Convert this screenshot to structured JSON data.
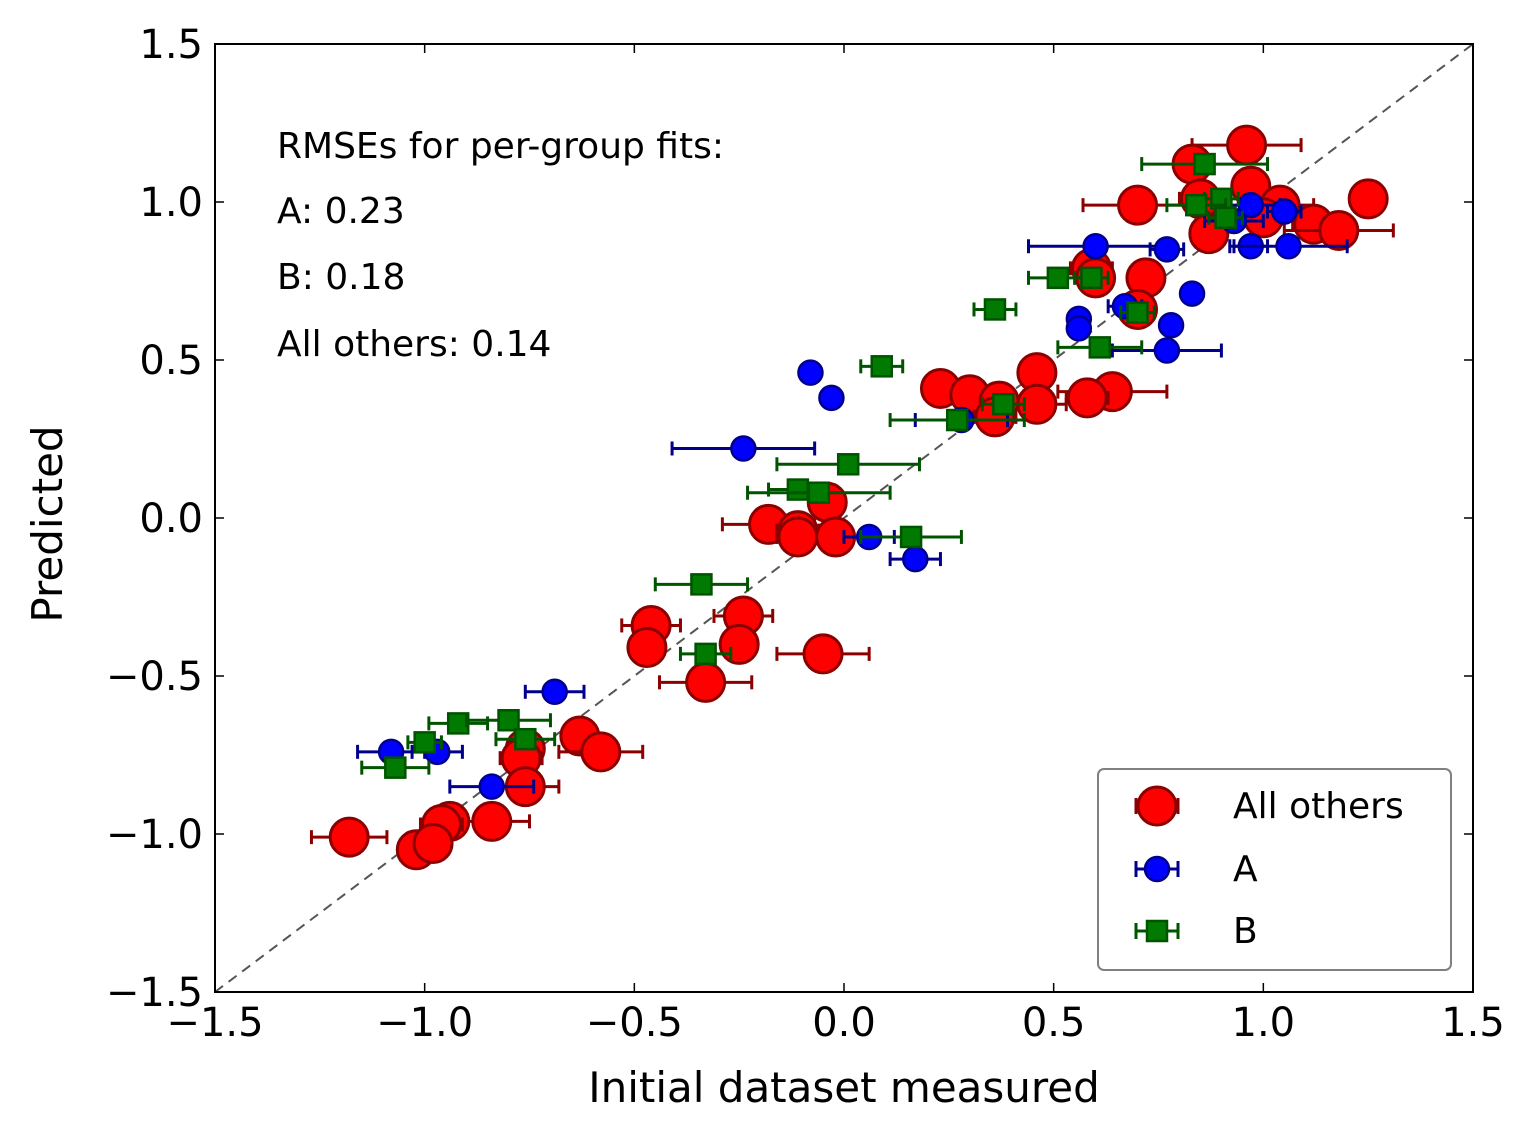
{
  "chart_data": {
    "type": "scatter",
    "xlabel": "Initial dataset measured",
    "ylabel": "Predicted",
    "xlim": [
      -1.5,
      1.5
    ],
    "ylim": [
      -1.5,
      1.5
    ],
    "ticks": [
      "−1.5",
      "−1.0",
      "−0.5",
      "0.0",
      "0.5",
      "1.0",
      "1.5"
    ],
    "tick_values": [
      -1.5,
      -1.0,
      -0.5,
      0.0,
      0.5,
      1.0,
      1.5
    ],
    "identity_line": true,
    "grid": false,
    "legend_position": "lower-right",
    "annotations": [
      "RMSEs for per-group fits:",
      "A: 0.23",
      "B: 0.18",
      "All others: 0.14"
    ],
    "series": [
      {
        "name": "All others",
        "marker": "circle-large",
        "color": "#ff0000",
        "edge_color": "#8b0000",
        "points": [
          {
            "x": 0.96,
            "y": 1.18,
            "xerr": 0.13
          },
          {
            "x": 0.83,
            "y": 1.12,
            "xerr": 0.04
          },
          {
            "x": 1.25,
            "y": 1.01,
            "xerr": 0.0
          },
          {
            "x": 0.7,
            "y": 0.99,
            "xerr": 0.13
          },
          {
            "x": 0.85,
            "y": 1.01,
            "xerr": 0.05
          },
          {
            "x": 0.97,
            "y": 1.05,
            "xerr": 0.04
          },
          {
            "x": 1.04,
            "y": 0.99,
            "xerr": 0.08
          },
          {
            "x": 1.0,
            "y": 0.95,
            "xerr": 0.04
          },
          {
            "x": 1.12,
            "y": 0.93,
            "xerr": 0.05
          },
          {
            "x": 1.18,
            "y": 0.91,
            "xerr": 0.13
          },
          {
            "x": 0.87,
            "y": 0.9,
            "xerr": 0.04
          },
          {
            "x": 0.59,
            "y": 0.79,
            "xerr": 0.05
          },
          {
            "x": 0.6,
            "y": 0.76,
            "xerr": 0.04
          },
          {
            "x": 0.72,
            "y": 0.76,
            "xerr": 0.04
          },
          {
            "x": 0.7,
            "y": 0.66,
            "xerr": 0.04
          },
          {
            "x": 0.46,
            "y": 0.46,
            "xerr": 0.04
          },
          {
            "x": 0.64,
            "y": 0.4,
            "xerr": 0.13
          },
          {
            "x": 0.58,
            "y": 0.38,
            "xerr": 0.05
          },
          {
            "x": 0.23,
            "y": 0.41,
            "xerr": 0.04
          },
          {
            "x": 0.3,
            "y": 0.39,
            "xerr": 0.04
          },
          {
            "x": 0.37,
            "y": 0.37,
            "xerr": 0.04
          },
          {
            "x": 0.46,
            "y": 0.36,
            "xerr": 0.07
          },
          {
            "x": 0.36,
            "y": 0.32,
            "xerr": 0.05
          },
          {
            "x": -0.04,
            "y": 0.05,
            "xerr": 0.04
          },
          {
            "x": -0.18,
            "y": -0.02,
            "xerr": 0.11
          },
          {
            "x": -0.11,
            "y": -0.04,
            "xerr": 0.05
          },
          {
            "x": -0.11,
            "y": -0.06,
            "xerr": 0.05
          },
          {
            "x": -0.02,
            "y": -0.06,
            "xerr": 0.04
          },
          {
            "x": -0.24,
            "y": -0.31,
            "xerr": 0.07
          },
          {
            "x": -0.46,
            "y": -0.34,
            "xerr": 0.07
          },
          {
            "x": -0.47,
            "y": -0.41,
            "xerr": 0.04
          },
          {
            "x": -0.25,
            "y": -0.4,
            "xerr": 0.04
          },
          {
            "x": -0.05,
            "y": -0.43,
            "xerr": 0.11
          },
          {
            "x": -0.33,
            "y": -0.52,
            "xerr": 0.11
          },
          {
            "x": -0.63,
            "y": -0.69,
            "xerr": 0.04
          },
          {
            "x": -0.76,
            "y": -0.73,
            "xerr": 0.04
          },
          {
            "x": -0.77,
            "y": -0.76,
            "xerr": 0.05
          },
          {
            "x": -0.58,
            "y": -0.74,
            "xerr": 0.1
          },
          {
            "x": -0.76,
            "y": -0.85,
            "xerr": 0.08
          },
          {
            "x": -0.84,
            "y": -0.96,
            "xerr": 0.09
          },
          {
            "x": -0.94,
            "y": -0.96,
            "xerr": 0.04
          },
          {
            "x": -0.96,
            "y": -0.97,
            "xerr": 0.05
          },
          {
            "x": -1.18,
            "y": -1.01,
            "xerr": 0.09
          },
          {
            "x": -1.02,
            "y": -1.05,
            "xerr": 0.04
          },
          {
            "x": -0.98,
            "y": -1.03,
            "xerr": 0.04
          }
        ]
      },
      {
        "name": "A",
        "marker": "circle",
        "color": "#0000ff",
        "edge_color": "#00008b",
        "points": [
          {
            "x": 0.97,
            "y": 0.99,
            "xerr": 0.07
          },
          {
            "x": 1.05,
            "y": 0.97,
            "xerr": 0.04
          },
          {
            "x": 0.93,
            "y": 0.94,
            "xerr": 0.07
          },
          {
            "x": 0.6,
            "y": 0.86,
            "xerr": 0.16
          },
          {
            "x": 0.77,
            "y": 0.85,
            "xerr": 0.04
          },
          {
            "x": 0.97,
            "y": 0.86,
            "xerr": 0.04
          },
          {
            "x": 1.06,
            "y": 0.86,
            "xerr": 0.14
          },
          {
            "x": 0.83,
            "y": 0.71,
            "xerr": 0.0
          },
          {
            "x": 0.67,
            "y": 0.67,
            "xerr": 0.04
          },
          {
            "x": 0.56,
            "y": 0.63,
            "xerr": 0.0
          },
          {
            "x": 0.56,
            "y": 0.6,
            "xerr": 0.0
          },
          {
            "x": 0.78,
            "y": 0.61,
            "xerr": 0.0
          },
          {
            "x": 0.77,
            "y": 0.53,
            "xerr": 0.13
          },
          {
            "x": -0.08,
            "y": 0.46,
            "xerr": 0.0
          },
          {
            "x": -0.03,
            "y": 0.38,
            "xerr": 0.0
          },
          {
            "x": 0.28,
            "y": 0.31,
            "xerr": 0.11
          },
          {
            "x": -0.24,
            "y": 0.22,
            "xerr": 0.17
          },
          {
            "x": 0.06,
            "y": -0.06,
            "xerr": 0.06
          },
          {
            "x": 0.17,
            "y": -0.13,
            "xerr": 0.06
          },
          {
            "x": -0.69,
            "y": -0.55,
            "xerr": 0.07
          },
          {
            "x": -1.08,
            "y": -0.74,
            "xerr": 0.08
          },
          {
            "x": -0.97,
            "y": -0.74,
            "xerr": 0.06
          },
          {
            "x": -0.84,
            "y": -0.85,
            "xerr": 0.1
          }
        ]
      },
      {
        "name": "B",
        "marker": "square",
        "color": "#007a00",
        "edge_color": "#005400",
        "points": [
          {
            "x": 0.86,
            "y": 1.12,
            "xerr": 0.15
          },
          {
            "x": 0.9,
            "y": 1.01,
            "xerr": 0.04
          },
          {
            "x": 0.84,
            "y": 0.99,
            "xerr": 0.07
          },
          {
            "x": 0.91,
            "y": 0.95,
            "xerr": 0.04
          },
          {
            "x": 0.51,
            "y": 0.76,
            "xerr": 0.07
          },
          {
            "x": 0.59,
            "y": 0.76,
            "xerr": 0.04
          },
          {
            "x": 0.36,
            "y": 0.66,
            "xerr": 0.05
          },
          {
            "x": 0.7,
            "y": 0.65,
            "xerr": 0.04
          },
          {
            "x": 0.61,
            "y": 0.54,
            "xerr": 0.1
          },
          {
            "x": 0.09,
            "y": 0.48,
            "xerr": 0.05
          },
          {
            "x": 0.38,
            "y": 0.36,
            "xerr": 0.05
          },
          {
            "x": 0.27,
            "y": 0.31,
            "xerr": 0.16
          },
          {
            "x": 0.01,
            "y": 0.17,
            "xerr": 0.17
          },
          {
            "x": -0.11,
            "y": 0.09,
            "xerr": 0.07
          },
          {
            "x": -0.06,
            "y": 0.08,
            "xerr": 0.17
          },
          {
            "x": 0.16,
            "y": -0.06,
            "xerr": 0.12
          },
          {
            "x": -0.34,
            "y": -0.21,
            "xerr": 0.11
          },
          {
            "x": -0.33,
            "y": -0.43,
            "xerr": 0.06
          },
          {
            "x": -0.92,
            "y": -0.65,
            "xerr": 0.07
          },
          {
            "x": -0.8,
            "y": -0.64,
            "xerr": 0.1
          },
          {
            "x": -0.76,
            "y": -0.7,
            "xerr": 0.07
          },
          {
            "x": -1.0,
            "y": -0.71,
            "xerr": 0.04
          },
          {
            "x": -1.07,
            "y": -0.79,
            "xerr": 0.08
          }
        ]
      }
    ]
  }
}
